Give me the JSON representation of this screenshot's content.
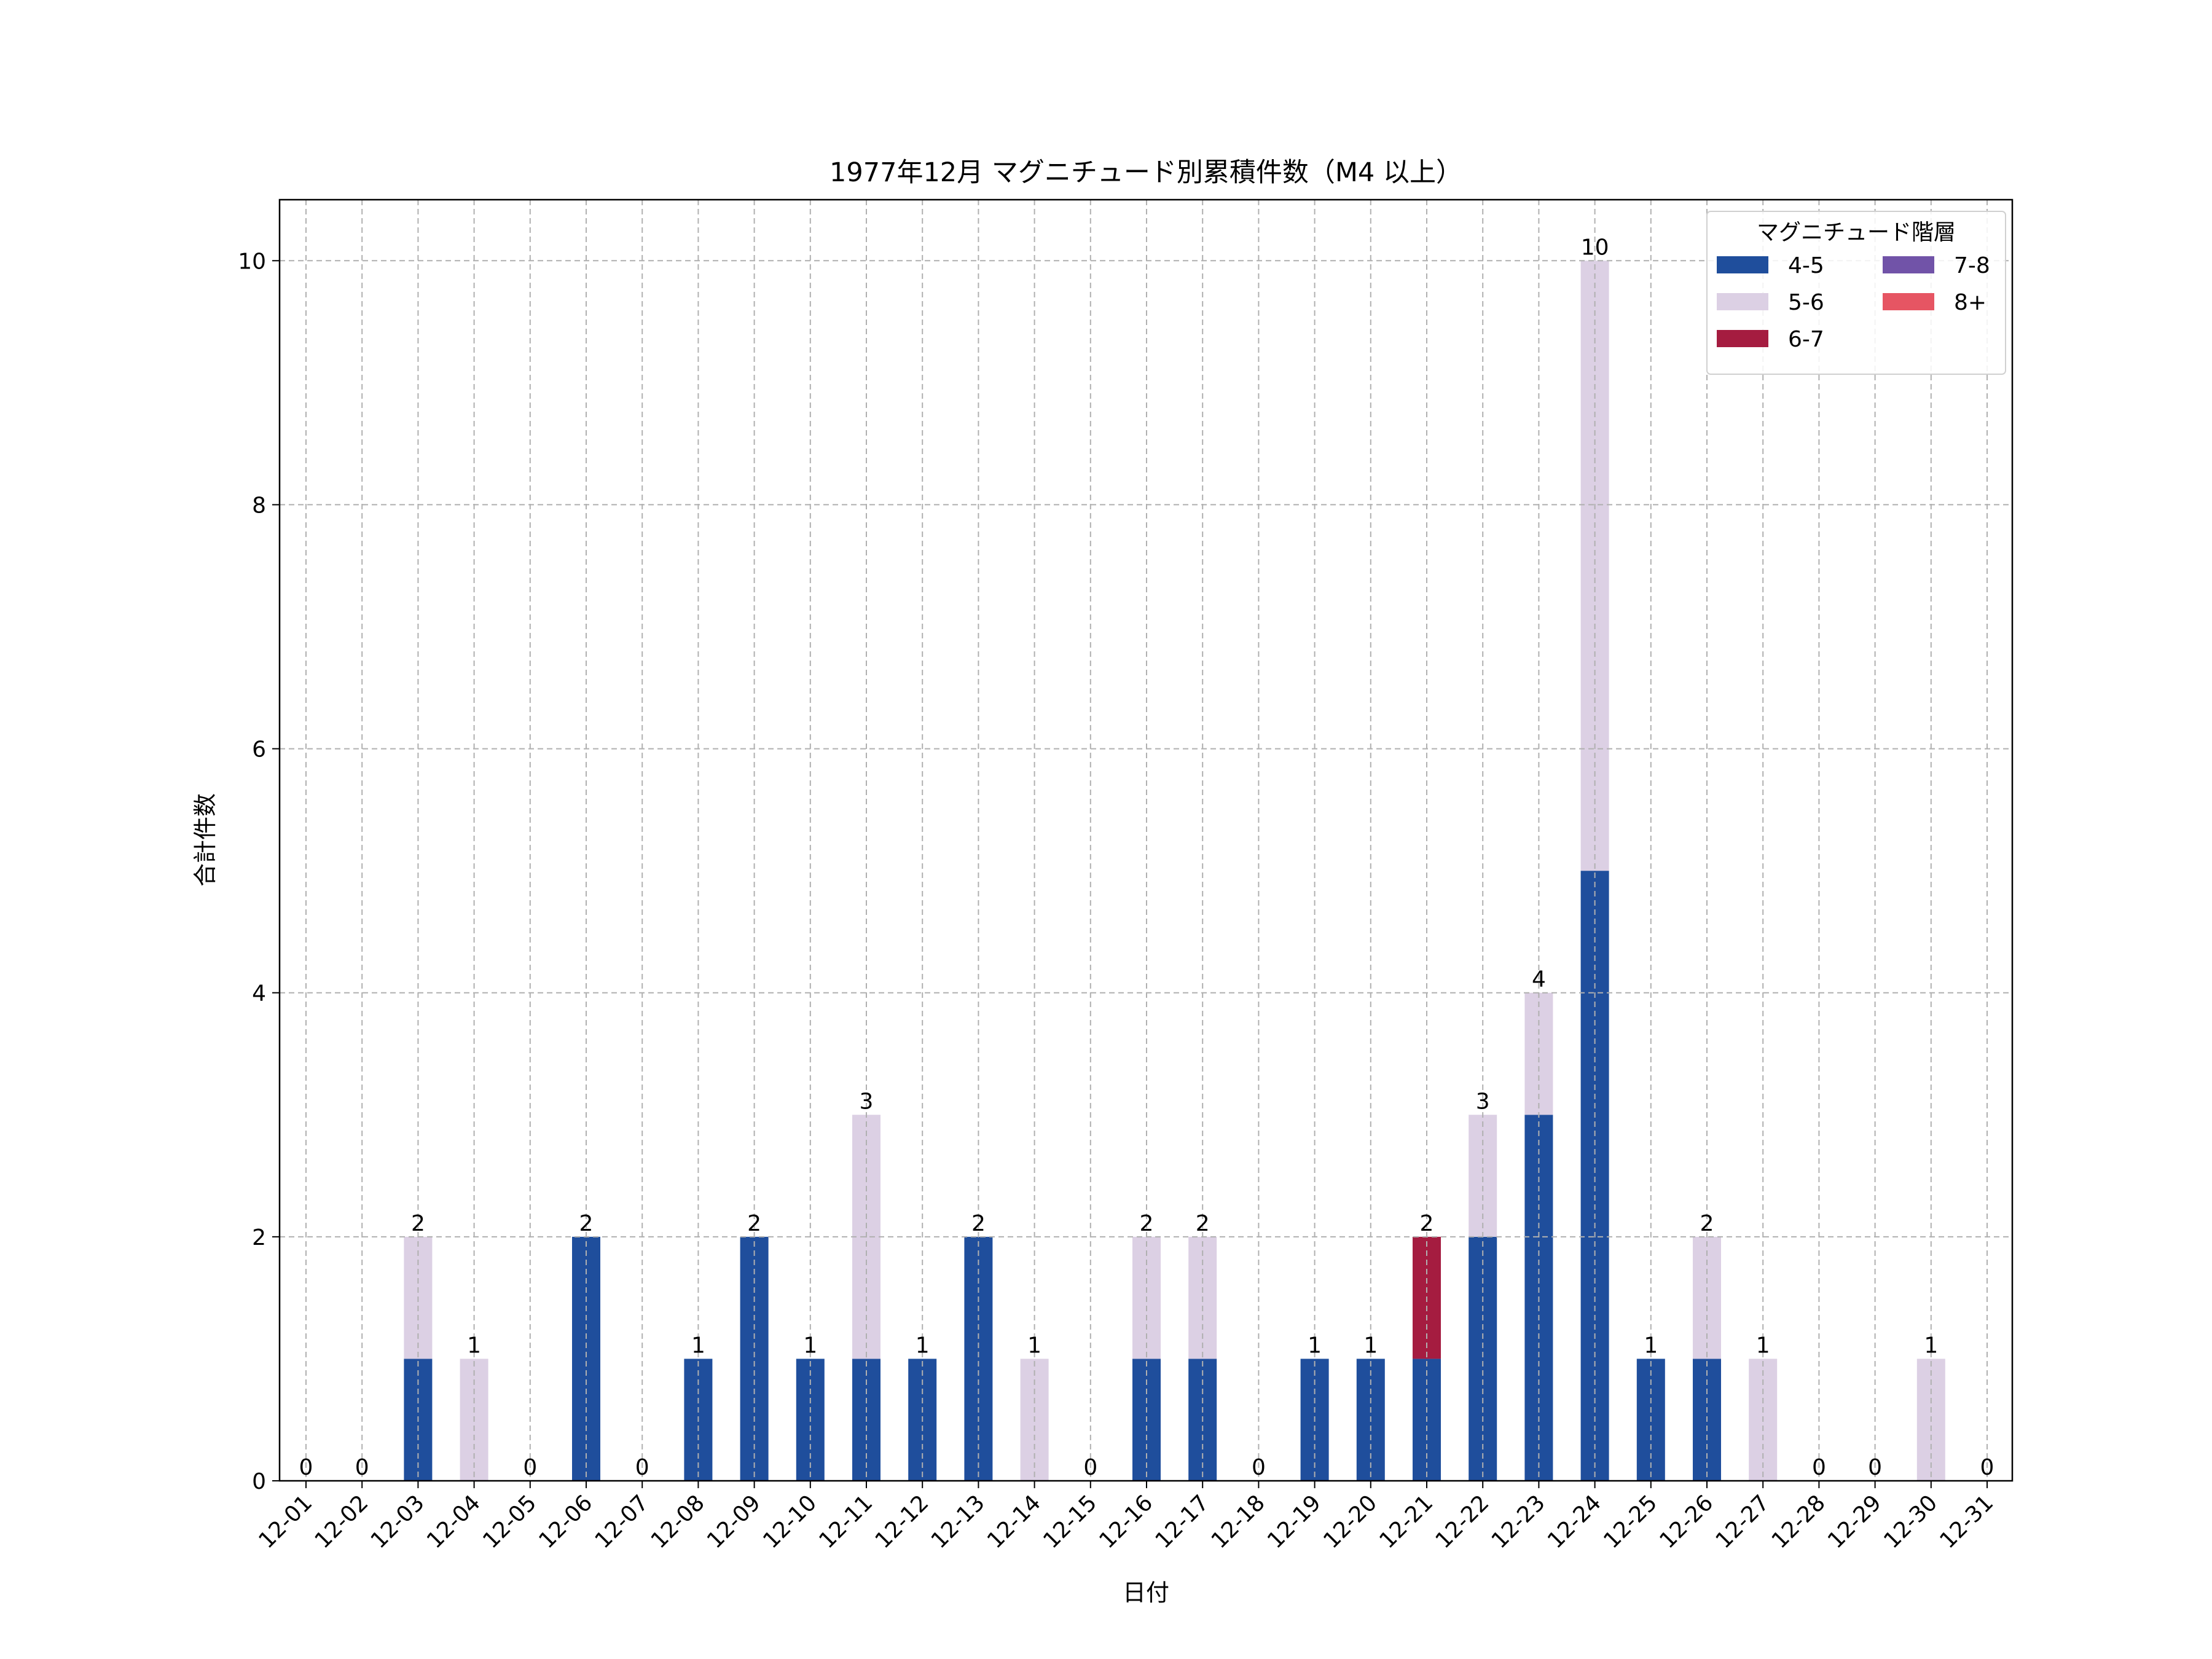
{
  "chart_data": {
    "type": "bar",
    "stacked": true,
    "title": "1977年12月 マグニチュード別累積件数（M4 以上）",
    "xlabel": "日付",
    "ylabel": "合計件数",
    "ylim": [
      0,
      10.5
    ],
    "yticks": [
      0,
      2,
      4,
      6,
      8,
      10
    ],
    "grid": true,
    "legend_title": "マグニチュード階層",
    "legend_position": "top-right",
    "categories": [
      "12-01",
      "12-02",
      "12-03",
      "12-04",
      "12-05",
      "12-06",
      "12-07",
      "12-08",
      "12-09",
      "12-10",
      "12-11",
      "12-12",
      "12-13",
      "12-14",
      "12-15",
      "12-16",
      "12-17",
      "12-18",
      "12-19",
      "12-20",
      "12-21",
      "12-22",
      "12-23",
      "12-24",
      "12-25",
      "12-26",
      "12-27",
      "12-28",
      "12-29",
      "12-30",
      "12-31"
    ],
    "series": [
      {
        "name": "4-5",
        "color": "#1f4e9c",
        "values": [
          0,
          0,
          1,
          0,
          0,
          2,
          0,
          1,
          2,
          1,
          1,
          1,
          2,
          0,
          0,
          1,
          1,
          0,
          1,
          1,
          1,
          2,
          3,
          5,
          1,
          1,
          0,
          0,
          0,
          0,
          0
        ]
      },
      {
        "name": "5-6",
        "color": "#dcd0e4",
        "values": [
          0,
          0,
          1,
          1,
          0,
          0,
          0,
          0,
          0,
          0,
          2,
          0,
          0,
          1,
          0,
          1,
          1,
          0,
          0,
          0,
          0,
          1,
          1,
          5,
          0,
          1,
          1,
          0,
          0,
          1,
          0
        ]
      },
      {
        "name": "6-7",
        "color": "#a51c40",
        "values": [
          0,
          0,
          0,
          0,
          0,
          0,
          0,
          0,
          0,
          0,
          0,
          0,
          0,
          0,
          0,
          0,
          0,
          0,
          0,
          0,
          1,
          0,
          0,
          0,
          0,
          0,
          0,
          0,
          0,
          0,
          0
        ]
      },
      {
        "name": "7-8",
        "color": "#7153a8",
        "values": [
          0,
          0,
          0,
          0,
          0,
          0,
          0,
          0,
          0,
          0,
          0,
          0,
          0,
          0,
          0,
          0,
          0,
          0,
          0,
          0,
          0,
          0,
          0,
          0,
          0,
          0,
          0,
          0,
          0,
          0,
          0
        ]
      },
      {
        "name": "8+",
        "color": "#e65563",
        "values": [
          0,
          0,
          0,
          0,
          0,
          0,
          0,
          0,
          0,
          0,
          0,
          0,
          0,
          0,
          0,
          0,
          0,
          0,
          0,
          0,
          0,
          0,
          0,
          0,
          0,
          0,
          0,
          0,
          0,
          0,
          0
        ]
      }
    ],
    "totals": [
      0,
      0,
      2,
      1,
      0,
      2,
      0,
      1,
      2,
      1,
      3,
      1,
      2,
      1,
      0,
      2,
      2,
      0,
      1,
      1,
      2,
      3,
      4,
      10,
      1,
      2,
      1,
      0,
      0,
      1,
      0
    ]
  }
}
